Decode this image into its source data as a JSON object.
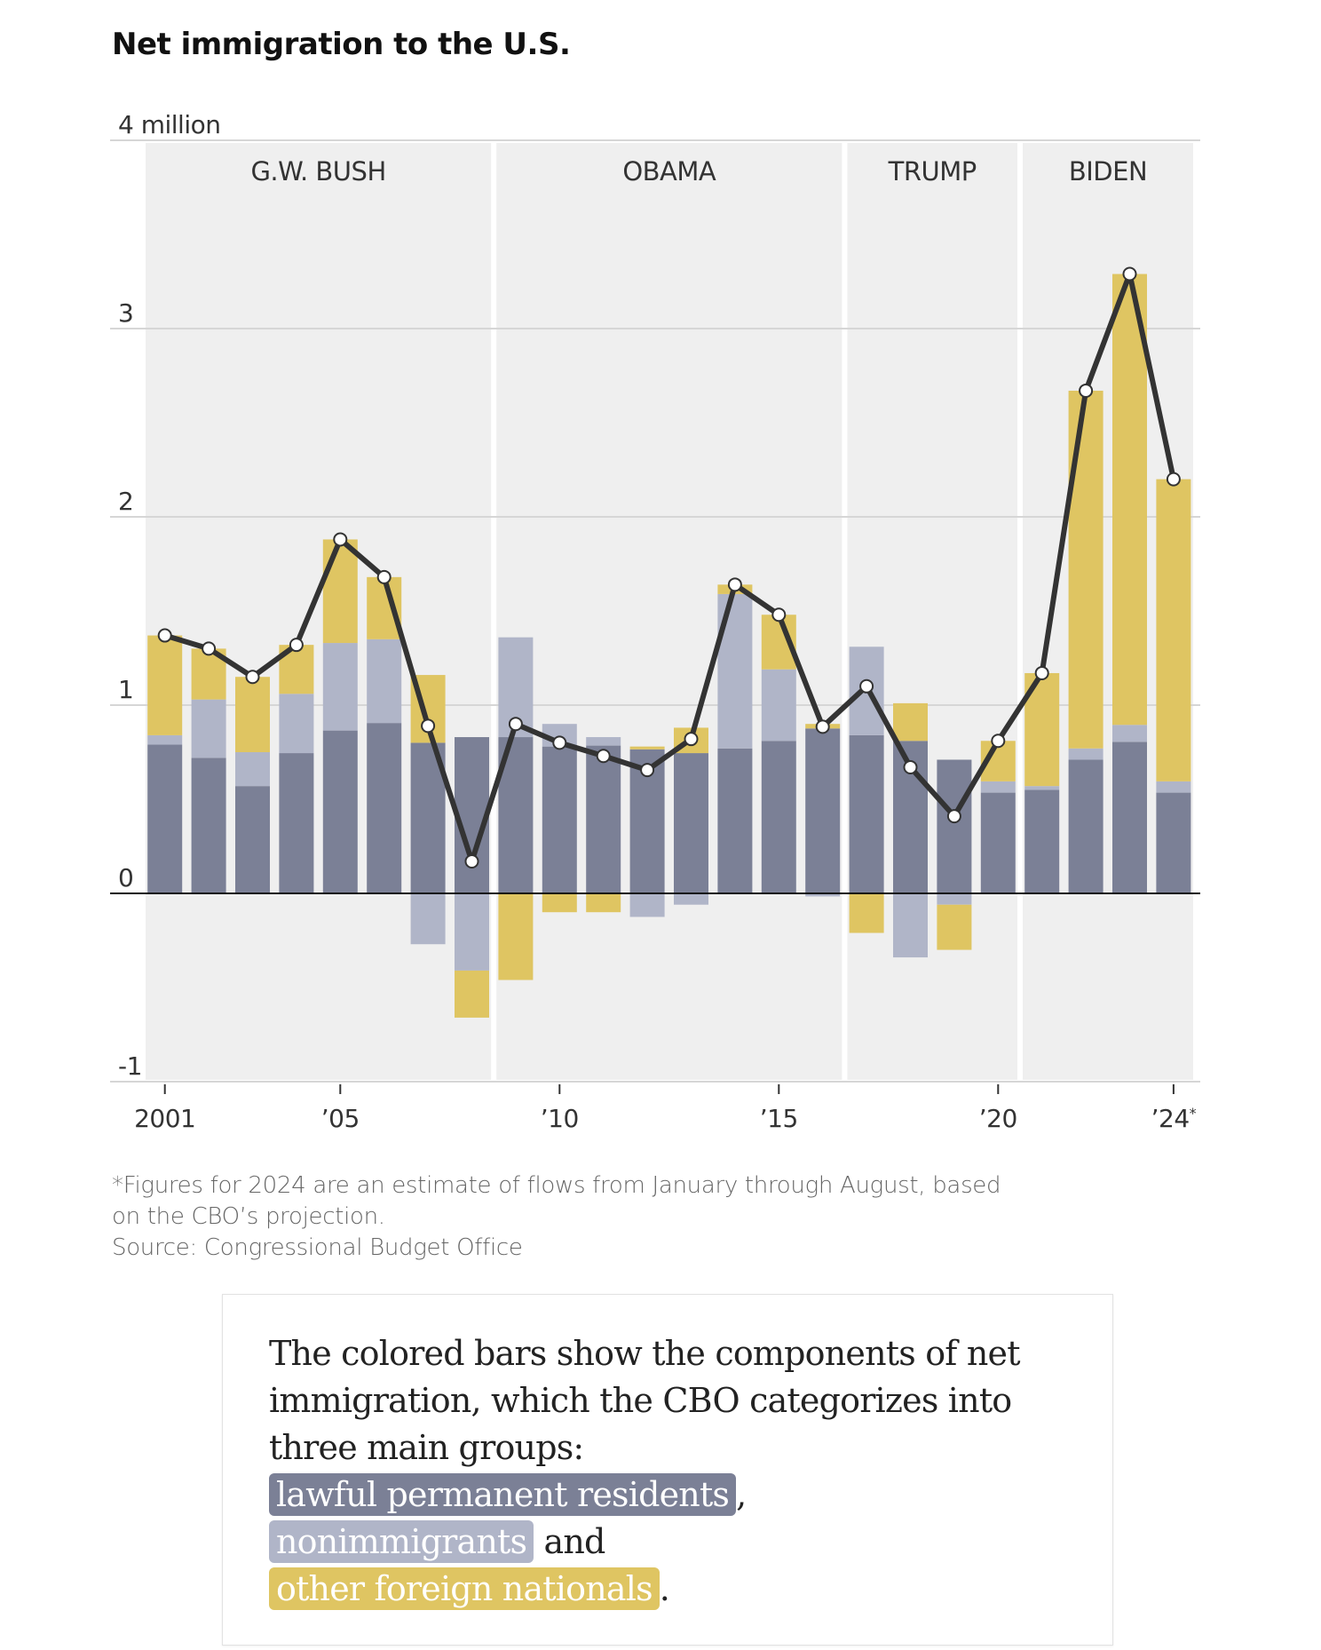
{
  "title": "Net immigration to the U.S.",
  "colors": {
    "lawful_permanent_residents": "#7b8096",
    "nonimmigrants": "#b0b5c8",
    "other_foreign_nationals": "#dfc562",
    "net_line": "#333333",
    "era_background": "#efefef"
  },
  "chart_data": {
    "type": "bar",
    "stacked": true,
    "overlay_line": "Net immigration total",
    "title": "Net immigration to the U.S.",
    "ylabel": "",
    "y_unit_label": "4 million",
    "ylim": [
      -1,
      4
    ],
    "yticks": [
      4,
      3,
      2,
      1,
      0,
      -1
    ],
    "ytick_labels": [
      "4 million",
      "3",
      "2",
      "1",
      "0",
      "-1"
    ],
    "x": [
      2001,
      2002,
      2003,
      2004,
      2005,
      2006,
      2007,
      2008,
      2009,
      2010,
      2011,
      2012,
      2013,
      2014,
      2015,
      2016,
      2017,
      2018,
      2019,
      2020,
      2021,
      2022,
      2023,
      2024
    ],
    "xticks": [
      2001,
      2005,
      2010,
      2015,
      2020,
      2024
    ],
    "xtick_labels": [
      "2001",
      "’05",
      "’10",
      "’15",
      "’20",
      "’24*"
    ],
    "grid": true,
    "eras": [
      {
        "label": "G.W. BUSH",
        "start": 2001,
        "end": 2008
      },
      {
        "label": "OBAMA",
        "start": 2009,
        "end": 2016
      },
      {
        "label": "TRUMP",
        "start": 2017,
        "end": 2020
      },
      {
        "label": "BIDEN",
        "start": 2021,
        "end": 2024
      }
    ],
    "series": [
      {
        "name": "lawful permanent residents",
        "key": "lpr",
        "values": [
          0.79,
          0.72,
          0.57,
          0.745,
          0.865,
          0.905,
          0.8,
          0.83,
          0.83,
          0.78,
          0.785,
          0.765,
          0.745,
          0.77,
          0.81,
          0.876,
          0.84,
          0.81,
          0.71,
          0.535,
          0.55,
          0.71,
          0.805,
          0.535
        ]
      },
      {
        "name": "nonimmigrants",
        "key": "ni",
        "values": [
          0.05,
          0.31,
          0.18,
          0.315,
          0.465,
          0.445,
          -0.27,
          -0.41,
          0.53,
          0.12,
          0.045,
          -0.125,
          -0.06,
          0.82,
          0.38,
          -0.016,
          0.47,
          -0.34,
          -0.06,
          0.06,
          0.02,
          0.06,
          0.09,
          0.06
        ]
      },
      {
        "name": "other foreign nationals",
        "key": "other",
        "values": [
          0.53,
          0.27,
          0.4,
          0.26,
          0.55,
          0.33,
          0.36,
          -0.25,
          -0.46,
          -0.1,
          -0.1,
          0.015,
          0.135,
          0.05,
          0.29,
          0.024,
          -0.21,
          0.2,
          -0.24,
          0.215,
          0.6,
          1.9,
          2.395,
          1.605
        ]
      }
    ],
    "net_total": [
      1.37,
      1.3,
      1.15,
      1.32,
      1.88,
      1.68,
      0.89,
      0.17,
      0.9,
      0.8,
      0.73,
      0.655,
      0.82,
      1.64,
      1.48,
      0.885,
      1.1,
      0.67,
      0.41,
      0.81,
      1.17,
      2.67,
      3.29,
      2.2
    ]
  },
  "footnote": {
    "line1": "*Figures for 2024 are an estimate of flows from January through August, based",
    "line2": "on the CBO’s projection.",
    "source": "Source: Congressional Budget Office"
  },
  "annotation": {
    "intro": "The colored bars show the components of net immigration, which the CBO categorizes into three main groups:",
    "group1": "lawful permanent residents",
    "sep1": ",",
    "group2": "nonimmigrants",
    "sep2": " and",
    "group3": "other foreign nationals",
    "end": "."
  }
}
